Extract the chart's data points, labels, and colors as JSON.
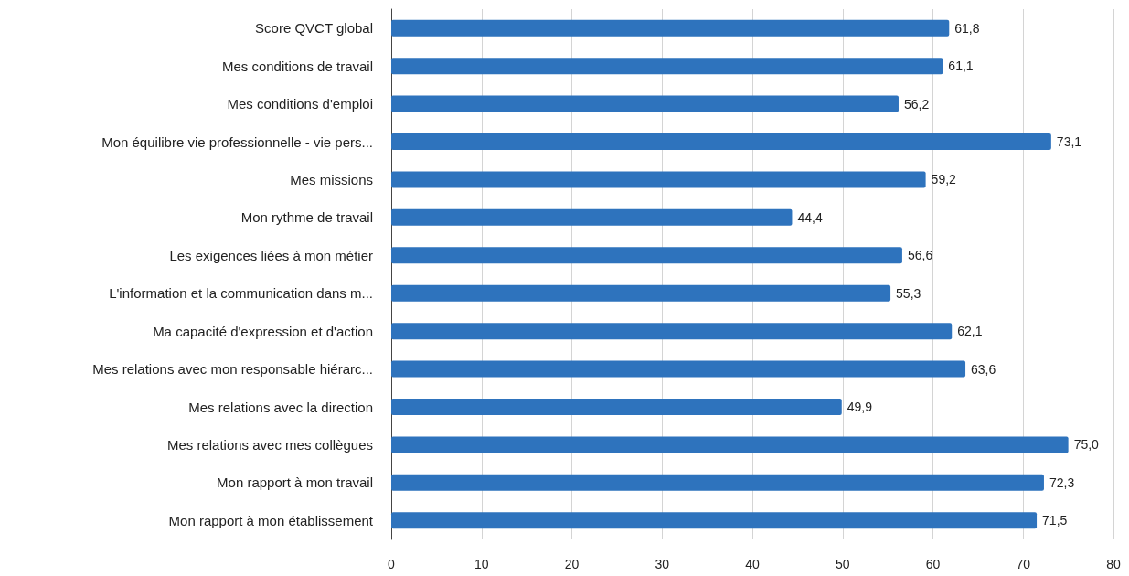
{
  "chart_data": {
    "type": "bar",
    "orientation": "horizontal",
    "categories": [
      "Score QVCT global",
      "Mes conditions de travail",
      "Mes conditions d'emploi",
      "Mon équilibre vie professionnelle - vie pers...",
      "Mes missions",
      "Mon rythme de travail",
      "Les exigences liées à mon métier",
      "L'information et la communication dans m...",
      "Ma capacité d'expression et d'action",
      "Mes relations avec mon responsable hiérarc...",
      "Mes relations avec la direction",
      "Mes relations avec mes collègues",
      "Mon rapport à mon travail",
      "Mon rapport à mon établissement"
    ],
    "values": [
      61.8,
      61.1,
      56.2,
      73.1,
      59.2,
      44.4,
      56.6,
      55.3,
      62.1,
      63.6,
      49.9,
      75.0,
      72.3,
      71.5
    ],
    "value_labels": [
      "61,8",
      "61,1",
      "56,2",
      "73,1",
      "59,2",
      "44,4",
      "56,6",
      "55,3",
      "62,1",
      "63,6",
      "49,9",
      "75,0",
      "72,3",
      "71,5"
    ],
    "color": "#2e73bd",
    "xlim": [
      0,
      80
    ],
    "xticks": [
      0,
      10,
      20,
      30,
      40,
      50,
      60,
      70,
      80
    ],
    "grid": "x"
  }
}
